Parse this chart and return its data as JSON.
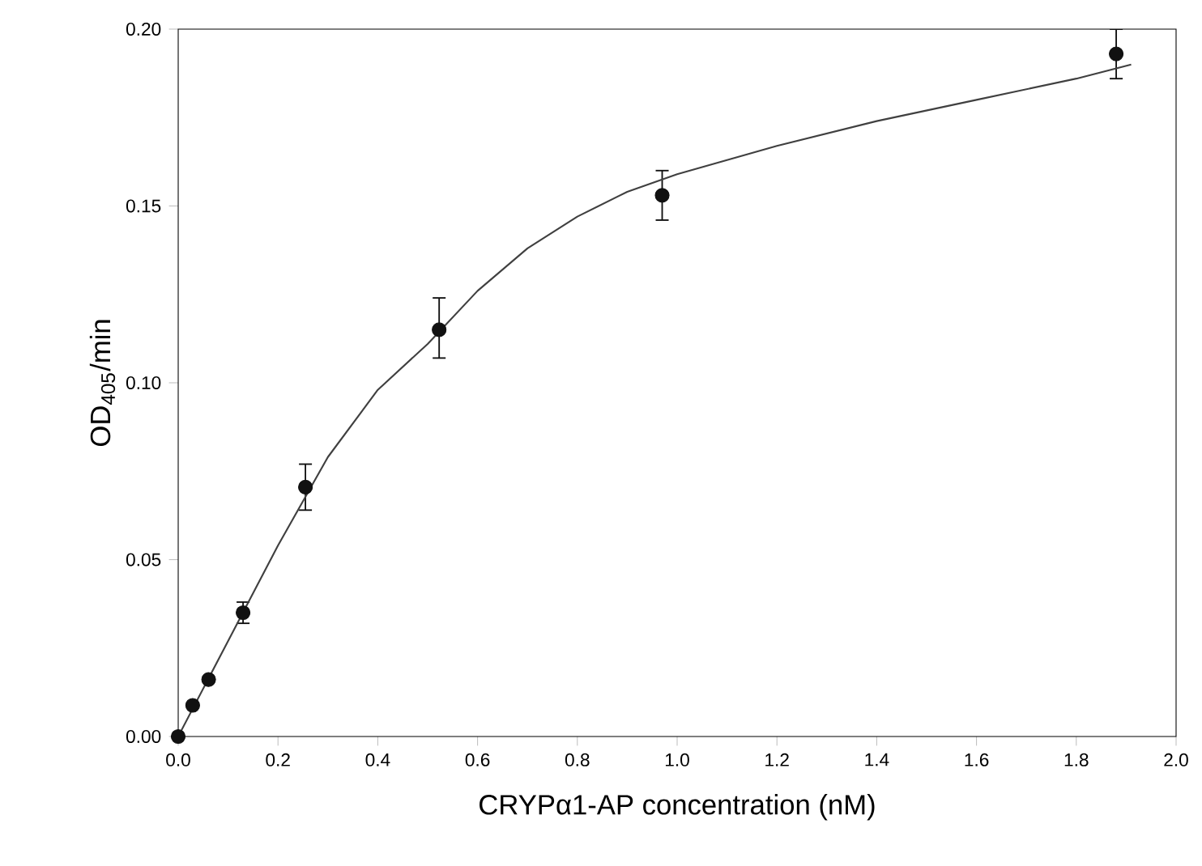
{
  "chart_data": {
    "type": "scatter",
    "xlabel": "CRYPα1-AP concentration (nM)",
    "ylabel": "OD$_{405}$/min",
    "series": [
      {
        "marker": "circle",
        "color": "#111111",
        "x": [
          0,
          0.029,
          0.061,
          0.13,
          0.255,
          0.523,
          0.97,
          1.88
        ],
        "values": [
          0,
          0.0088,
          0.0161,
          0.035,
          0.0705,
          0.115,
          0.153,
          0.193
        ],
        "errors": [
          null,
          null,
          null,
          [
            0.032,
            0.038
          ],
          [
            0.064,
            0.077
          ],
          [
            0.107,
            0.124
          ],
          [
            0.146,
            0.16
          ],
          [
            0.186,
            0.2
          ]
        ]
      },
      {
        "type": "line",
        "marker": "none",
        "color": "#404040",
        "x": [
          0,
          0.1,
          0.2,
          0.3,
          0.4,
          0.5,
          0.6,
          0.7,
          0.8,
          0.9,
          1.0,
          1.2,
          1.4,
          1.6,
          1.8,
          1.91
        ],
        "values": [
          0,
          0.027,
          0.054,
          0.079,
          0.098,
          0.111,
          0.126,
          0.138,
          0.147,
          0.154,
          0.159,
          0.167,
          0.174,
          0.18,
          0.186,
          0.19
        ]
      }
    ],
    "xlim": [
      0,
      2.0
    ],
    "ylim": [
      0,
      0.2
    ],
    "xticks": [
      {
        "value": 0,
        "label": "0.0"
      },
      {
        "value": 0.2,
        "label": "0.2"
      },
      {
        "value": 0.4,
        "label": "0.4"
      },
      {
        "value": 0.6,
        "label": "0.6"
      },
      {
        "value": 0.8,
        "label": "0.8"
      },
      {
        "value": 1.0,
        "label": "1.0"
      },
      {
        "value": 1.2,
        "label": "1.2"
      },
      {
        "value": 1.4,
        "label": "1.4"
      },
      {
        "value": 1.6,
        "label": "1.6"
      },
      {
        "value": 1.8,
        "label": "1.8"
      },
      {
        "value": 2.0,
        "label": "2.0"
      }
    ],
    "yticks": [
      {
        "value": 0,
        "label": "0.00"
      },
      {
        "value": 0.05,
        "label": "0.05"
      },
      {
        "value": 0.1,
        "label": "0.10"
      },
      {
        "value": 0.15,
        "label": "0.15"
      },
      {
        "value": 0.2,
        "label": "0.20"
      }
    ]
  }
}
